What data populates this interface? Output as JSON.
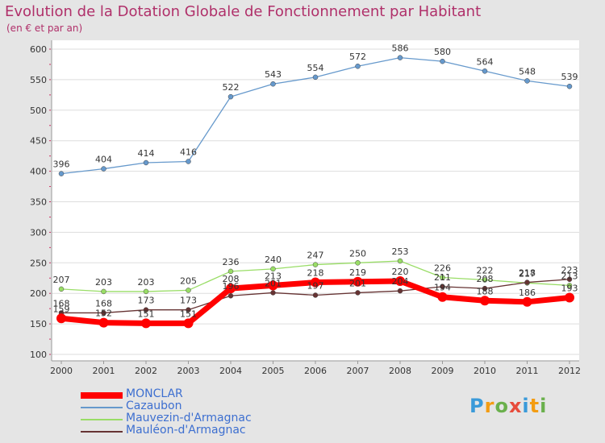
{
  "header": {
    "title": "Evolution de la Dotation Globale de Fonctionnement par Habitant",
    "subtitle": "(en € et par an)"
  },
  "logo": {
    "chars": [
      "P",
      "r",
      "o",
      "x",
      "i",
      "t",
      "i"
    ]
  },
  "chart_data": {
    "type": "line",
    "title": "Evolution de la Dotation Globale de Fonctionnement par Habitant",
    "ylabel": "(en € et par an)",
    "xlabel": "",
    "ylim": [
      100,
      600
    ],
    "yticks": [
      100,
      150,
      200,
      250,
      300,
      350,
      400,
      450,
      500,
      550,
      600
    ],
    "categories": [
      "2000",
      "2001",
      "2002",
      "2003",
      "2004",
      "2005",
      "2006",
      "2007",
      "2008",
      "2009",
      "2010",
      "2011",
      "2012"
    ],
    "series": [
      {
        "name": "MONCLAR",
        "color": "#ff0000",
        "emphasis": true,
        "values": [
          159,
          152,
          151,
          151,
          208,
          213,
          218,
          219,
          220,
          194,
          188,
          186,
          193
        ]
      },
      {
        "name": "Cazaubon",
        "color": "#6699cc",
        "values": [
          396,
          404,
          414,
          416,
          522,
          543,
          554,
          572,
          586,
          580,
          564,
          548,
          539
        ]
      },
      {
        "name": "Mauvezin-d'Armagnac",
        "color": "#99dd66",
        "values": [
          207,
          203,
          203,
          205,
          236,
          240,
          247,
          250,
          253,
          226,
          222,
          217,
          213
        ]
      },
      {
        "name": "Mauléon-d'Armagnac",
        "color": "#663333",
        "values": [
          168,
          168,
          173,
          173,
          196,
          201,
          197,
          201,
          204,
          211,
          208,
          218,
          223
        ]
      }
    ]
  }
}
